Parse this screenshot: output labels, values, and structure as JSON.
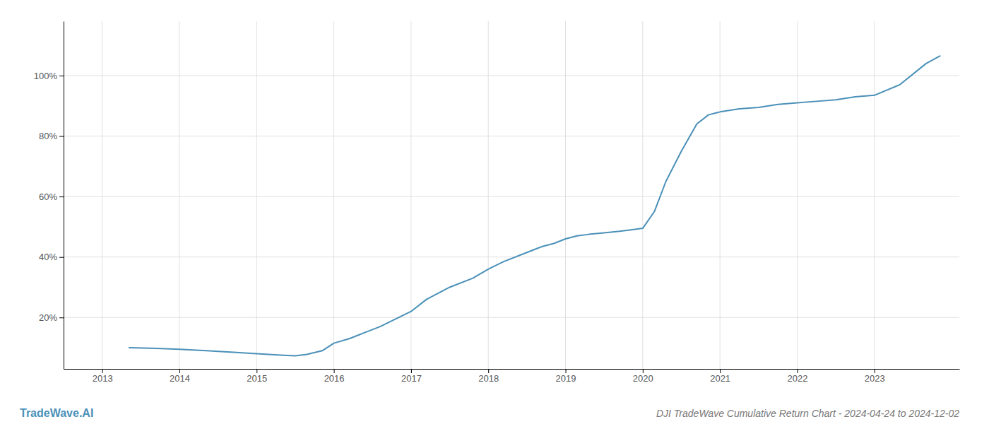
{
  "chart_data": {
    "type": "line",
    "title": "DJI TradeWave Cumulative Return Chart - 2024-04-24 to 2024-12-02",
    "annotations": [
      "TradeWave.AI"
    ],
    "color": "#4a90b8",
    "x": [
      2013.35,
      2013.7,
      2014.0,
      2014.35,
      2014.7,
      2015.0,
      2015.35,
      2015.5,
      2015.65,
      2015.85,
      2016.0,
      2016.2,
      2016.4,
      2016.6,
      2016.8,
      2017.0,
      2017.2,
      2017.5,
      2017.8,
      2018.0,
      2018.2,
      2018.5,
      2018.7,
      2018.85,
      2019.0,
      2019.15,
      2019.3,
      2019.5,
      2019.7,
      2019.85,
      2020.0,
      2020.15,
      2020.3,
      2020.5,
      2020.7,
      2020.85,
      2021.0,
      2021.25,
      2021.5,
      2021.75,
      2022.0,
      2022.25,
      2022.5,
      2022.75,
      2023.0,
      2023.33,
      2023.67,
      2023.85
    ],
    "values": [
      10.0,
      9.8,
      9.5,
      9.0,
      8.5,
      8.0,
      7.5,
      7.3,
      7.8,
      9.0,
      11.5,
      13.0,
      15.0,
      17.0,
      19.5,
      22.0,
      26.0,
      30.0,
      33.0,
      36.0,
      38.5,
      41.5,
      43.5,
      44.5,
      46.0,
      47.0,
      47.5,
      48.0,
      48.5,
      49.0,
      49.5,
      55.0,
      65.0,
      75.0,
      84.0,
      87.0,
      88.0,
      89.0,
      89.5,
      90.5,
      91.0,
      91.5,
      92.0,
      93.0,
      93.5,
      97.0,
      104.0,
      106.5
    ],
    "xlim": [
      2012.5,
      2024.1
    ],
    "xticks": [
      2013,
      2014,
      2015,
      2016,
      2017,
      2018,
      2019,
      2020,
      2021,
      2022,
      2023
    ],
    "ylim": [
      3,
      118
    ],
    "yticks": [
      {
        "value": 20,
        "label": "20%"
      },
      {
        "value": 40,
        "label": "40%"
      },
      {
        "value": 60,
        "label": "60%"
      },
      {
        "value": 80,
        "label": "80%"
      },
      {
        "value": 100,
        "label": "100%"
      }
    ],
    "grid": true
  }
}
